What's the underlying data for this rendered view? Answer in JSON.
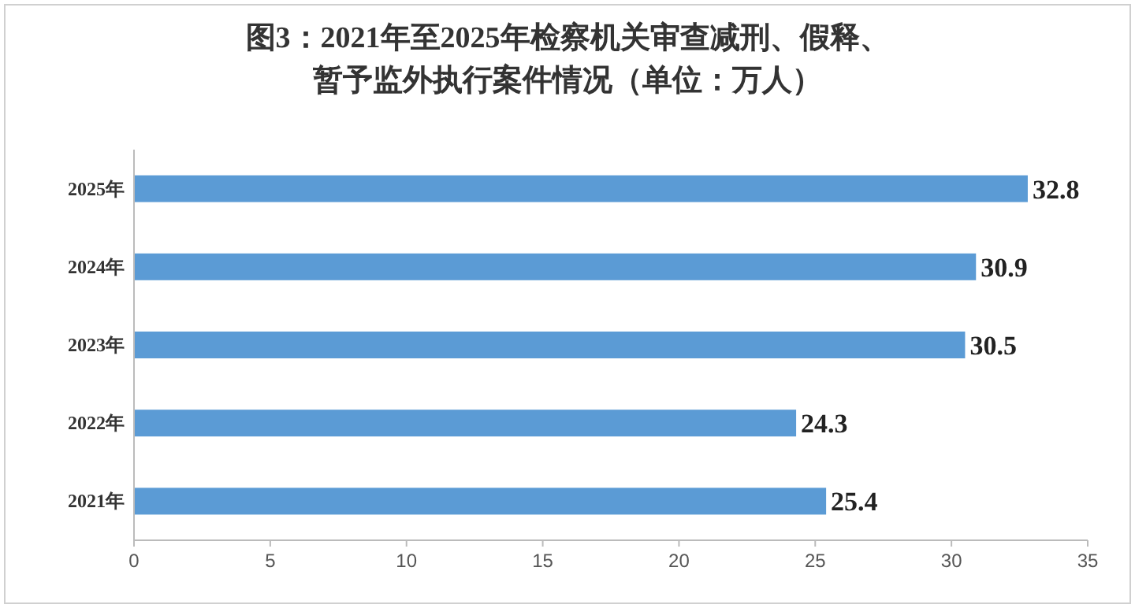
{
  "chart_data": {
    "type": "bar",
    "orientation": "horizontal",
    "title": "图3：2021年至2025年检察机关审查减刑、假释、暂予监外执行案件情况（单位：万人）",
    "categories": [
      "2025年",
      "2024年",
      "2023年",
      "2022年",
      "2021年"
    ],
    "values": [
      32.8,
      30.9,
      30.5,
      24.3,
      25.4
    ],
    "color": "#5b9bd5",
    "xlim": [
      0,
      35
    ],
    "xticks": [
      0,
      5,
      10,
      15,
      20,
      25,
      30,
      35
    ],
    "grid": false,
    "data_labels": true
  }
}
